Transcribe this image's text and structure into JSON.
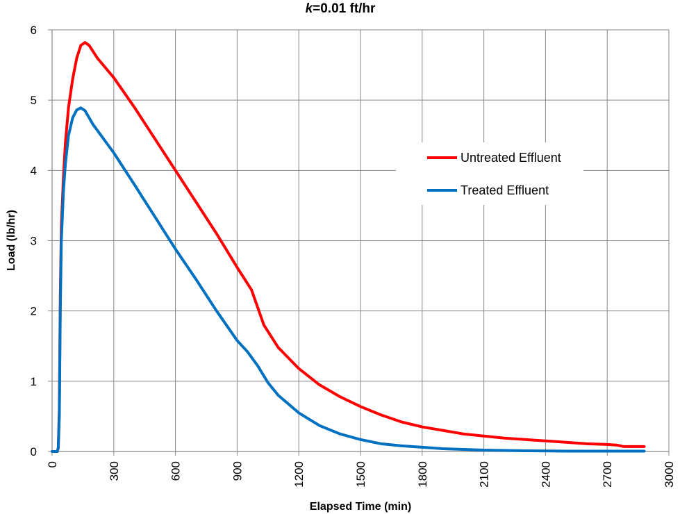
{
  "chart_data": {
    "type": "line",
    "title_var": "k",
    "title_rest": "=0.01 ft/hr",
    "xlabel": "Elapsed Time (min)",
    "ylabel": "Load (lb/hr)",
    "xlim": [
      0,
      3000
    ],
    "ylim": [
      0,
      6
    ],
    "x_ticks": [
      0,
      300,
      600,
      900,
      1200,
      1500,
      1800,
      2100,
      2400,
      2700,
      3000
    ],
    "y_ticks": [
      0,
      1,
      2,
      3,
      4,
      5,
      6
    ],
    "grid": true,
    "legend_position": "right",
    "series": [
      {
        "name": "Untreated Effluent",
        "color": "#ff0000",
        "points": [
          [
            0,
            0
          ],
          [
            25,
            0
          ],
          [
            30,
            0.05
          ],
          [
            35,
            0.6
          ],
          [
            40,
            2.2
          ],
          [
            45,
            3.2
          ],
          [
            55,
            3.9
          ],
          [
            65,
            4.4
          ],
          [
            80,
            4.9
          ],
          [
            100,
            5.3
          ],
          [
            120,
            5.6
          ],
          [
            140,
            5.78
          ],
          [
            160,
            5.82
          ],
          [
            180,
            5.78
          ],
          [
            220,
            5.6
          ],
          [
            300,
            5.32
          ],
          [
            400,
            4.9
          ],
          [
            500,
            4.45
          ],
          [
            600,
            4.0
          ],
          [
            700,
            3.55
          ],
          [
            800,
            3.1
          ],
          [
            900,
            2.62
          ],
          [
            970,
            2.3
          ],
          [
            1000,
            2.05
          ],
          [
            1030,
            1.8
          ],
          [
            1100,
            1.48
          ],
          [
            1200,
            1.18
          ],
          [
            1300,
            0.95
          ],
          [
            1400,
            0.78
          ],
          [
            1500,
            0.64
          ],
          [
            1600,
            0.52
          ],
          [
            1700,
            0.42
          ],
          [
            1800,
            0.35
          ],
          [
            1900,
            0.3
          ],
          [
            2000,
            0.25
          ],
          [
            2100,
            0.22
          ],
          [
            2200,
            0.19
          ],
          [
            2300,
            0.17
          ],
          [
            2400,
            0.15
          ],
          [
            2500,
            0.13
          ],
          [
            2600,
            0.11
          ],
          [
            2700,
            0.1
          ],
          [
            2750,
            0.09
          ],
          [
            2780,
            0.07
          ],
          [
            2880,
            0.07
          ]
        ]
      },
      {
        "name": "Treated Effluent",
        "color": "#0070c0",
        "points": [
          [
            0,
            0
          ],
          [
            25,
            0
          ],
          [
            30,
            0.05
          ],
          [
            35,
            0.5
          ],
          [
            40,
            2.0
          ],
          [
            45,
            3.0
          ],
          [
            55,
            3.7
          ],
          [
            65,
            4.1
          ],
          [
            80,
            4.5
          ],
          [
            100,
            4.75
          ],
          [
            120,
            4.86
          ],
          [
            140,
            4.89
          ],
          [
            160,
            4.85
          ],
          [
            200,
            4.65
          ],
          [
            300,
            4.25
          ],
          [
            400,
            3.8
          ],
          [
            500,
            3.34
          ],
          [
            600,
            2.88
          ],
          [
            700,
            2.45
          ],
          [
            800,
            2.0
          ],
          [
            900,
            1.58
          ],
          [
            950,
            1.42
          ],
          [
            1000,
            1.22
          ],
          [
            1050,
            0.98
          ],
          [
            1100,
            0.8
          ],
          [
            1200,
            0.55
          ],
          [
            1300,
            0.37
          ],
          [
            1400,
            0.25
          ],
          [
            1500,
            0.17
          ],
          [
            1600,
            0.11
          ],
          [
            1700,
            0.08
          ],
          [
            1800,
            0.06
          ],
          [
            1900,
            0.04
          ],
          [
            2000,
            0.03
          ],
          [
            2100,
            0.02
          ],
          [
            2300,
            0.01
          ],
          [
            2500,
            0.005
          ],
          [
            2880,
            0.005
          ]
        ]
      }
    ]
  }
}
